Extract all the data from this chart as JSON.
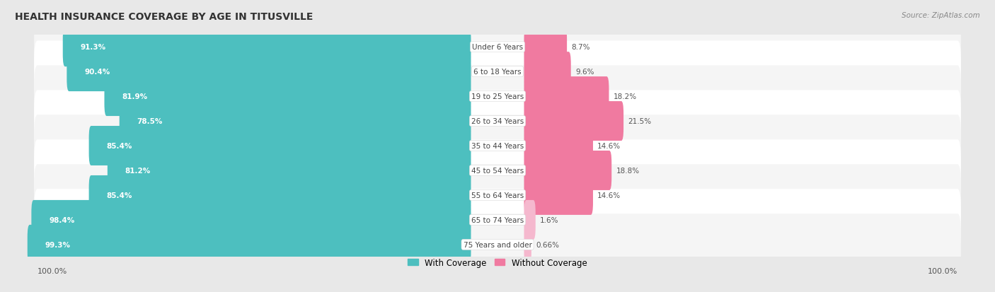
{
  "title": "HEALTH INSURANCE COVERAGE BY AGE IN TITUSVILLE",
  "source": "Source: ZipAtlas.com",
  "categories": [
    "Under 6 Years",
    "6 to 18 Years",
    "19 to 25 Years",
    "26 to 34 Years",
    "35 to 44 Years",
    "45 to 54 Years",
    "55 to 64 Years",
    "65 to 74 Years",
    "75 Years and older"
  ],
  "with_coverage": [
    91.3,
    90.4,
    81.9,
    78.5,
    85.4,
    81.2,
    85.4,
    98.4,
    99.3
  ],
  "without_coverage": [
    8.7,
    9.6,
    18.2,
    21.5,
    14.6,
    18.8,
    14.6,
    1.6,
    0.66
  ],
  "with_coverage_labels": [
    "91.3%",
    "90.4%",
    "81.9%",
    "78.5%",
    "85.4%",
    "81.2%",
    "85.4%",
    "98.4%",
    "99.3%"
  ],
  "without_coverage_labels": [
    "8.7%",
    "9.6%",
    "18.2%",
    "21.5%",
    "14.6%",
    "18.8%",
    "14.6%",
    "1.6%",
    "0.66%"
  ],
  "color_with": "#4DBFBF",
  "color_without": "#F07AA0",
  "color_without_light": "#F5B8CE",
  "bg_color": "#e8e8e8",
  "row_bg_even": "#f5f5f5",
  "row_bg_odd": "#ffffff",
  "legend_with": "With Coverage",
  "legend_without": "Without Coverage",
  "x_left_label": "100.0%",
  "x_right_label": "100.0%"
}
